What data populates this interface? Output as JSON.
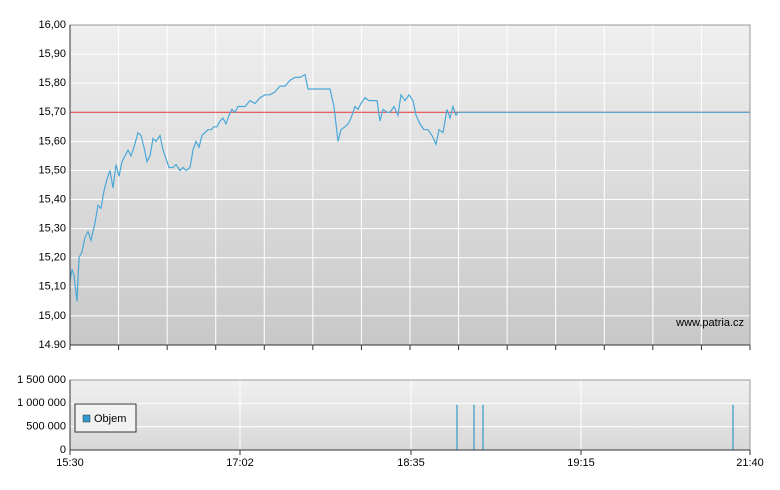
{
  "chart_data": [
    {
      "type": "line",
      "color": "#4aa8d8",
      "watermark": "www.patria.cz",
      "hline": {
        "value": 15.7,
        "color": "#e03030"
      },
      "xlim": [
        0,
        680
      ],
      "ylim": [
        14.9,
        16.0
      ],
      "yticks": [
        {
          "value": 14.9,
          "label": "14.90"
        },
        {
          "value": 15.0,
          "label": "15,00"
        },
        {
          "value": 15.1,
          "label": "15,10"
        },
        {
          "value": 15.2,
          "label": "15,20"
        },
        {
          "value": 15.3,
          "label": "15,30"
        },
        {
          "value": 15.4,
          "label": "15,40"
        },
        {
          "value": 15.5,
          "label": "15,50"
        },
        {
          "value": 15.6,
          "label": "15,60"
        },
        {
          "value": 15.7,
          "label": "15,70"
        },
        {
          "value": 15.8,
          "label": "15,80"
        },
        {
          "value": 15.9,
          "label": "15,90"
        },
        {
          "value": 16.0,
          "label": "16,00"
        }
      ],
      "x": [
        0,
        2,
        4,
        7,
        9,
        12,
        15,
        18,
        21,
        25,
        28,
        31,
        34,
        37,
        40,
        43,
        46,
        49,
        52,
        55,
        58,
        61,
        64,
        68,
        71,
        74,
        77,
        80,
        83,
        86,
        90,
        93,
        96,
        99,
        103,
        106,
        110,
        113,
        116,
        120,
        123,
        126,
        129,
        132,
        135,
        138,
        141,
        144,
        147,
        150,
        153,
        156,
        159,
        162,
        165,
        168,
        171,
        175,
        180,
        185,
        190,
        195,
        200,
        205,
        210,
        215,
        220,
        225,
        230,
        235,
        238,
        245,
        250,
        255,
        260,
        264,
        268,
        271,
        275,
        278,
        281,
        285,
        288,
        291,
        295,
        299,
        303,
        307,
        310,
        313,
        317,
        320,
        324,
        328,
        331,
        335,
        339,
        343,
        346,
        350,
        354,
        358,
        362,
        366,
        369,
        373,
        377,
        380,
        383,
        386,
        388,
        680
      ],
      "values": [
        15.12,
        15.16,
        15.14,
        15.05,
        15.2,
        15.22,
        15.27,
        15.29,
        15.26,
        15.32,
        15.38,
        15.37,
        15.43,
        15.47,
        15.5,
        15.44,
        15.52,
        15.48,
        15.53,
        15.55,
        15.57,
        15.55,
        15.58,
        15.63,
        15.62,
        15.58,
        15.53,
        15.55,
        15.61,
        15.6,
        15.62,
        15.57,
        15.54,
        15.51,
        15.51,
        15.52,
        15.5,
        15.51,
        15.5,
        15.51,
        15.57,
        15.6,
        15.58,
        15.62,
        15.63,
        15.64,
        15.64,
        15.65,
        15.65,
        15.67,
        15.68,
        15.66,
        15.69,
        15.71,
        15.7,
        15.72,
        15.72,
        15.72,
        15.74,
        15.73,
        15.75,
        15.76,
        15.76,
        15.77,
        15.79,
        15.79,
        15.81,
        15.82,
        15.82,
        15.83,
        15.78,
        15.78,
        15.78,
        15.78,
        15.78,
        15.72,
        15.6,
        15.64,
        15.65,
        15.66,
        15.68,
        15.72,
        15.71,
        15.73,
        15.75,
        15.74,
        15.74,
        15.74,
        15.67,
        15.71,
        15.7,
        15.7,
        15.72,
        15.69,
        15.76,
        15.74,
        15.76,
        15.74,
        15.69,
        15.66,
        15.64,
        15.64,
        15.62,
        15.59,
        15.64,
        15.63,
        15.71,
        15.68,
        15.72,
        15.69,
        15.7,
        15.7
      ]
    },
    {
      "type": "bar",
      "xlim": [
        0,
        680
      ],
      "xticks": [
        {
          "value": 0,
          "label": "15:30"
        },
        {
          "value": 170,
          "label": "17:02"
        },
        {
          "value": 341,
          "label": "18:35"
        },
        {
          "value": 511,
          "label": "19:15"
        },
        {
          "value": 680,
          "label": "21:40"
        }
      ],
      "ylim": [
        0,
        1500000
      ],
      "yticks": [
        0,
        {
          "value": 500000,
          "label": "500 000"
        },
        {
          "value": 1000000,
          "label": "1 000 000"
        },
        {
          "value": 1500000,
          "label": "1 500 000"
        }
      ],
      "x": [
        185,
        350,
        355,
        360,
        365,
        387,
        404,
        413,
        663
      ],
      "series": [
        {
          "name": "Objem",
          "color": "#3399cc",
          "values": [
            5000,
            8000,
            10000,
            12000,
            8000,
            970000,
            970000,
            970000,
            970000
          ]
        }
      ]
    }
  ]
}
